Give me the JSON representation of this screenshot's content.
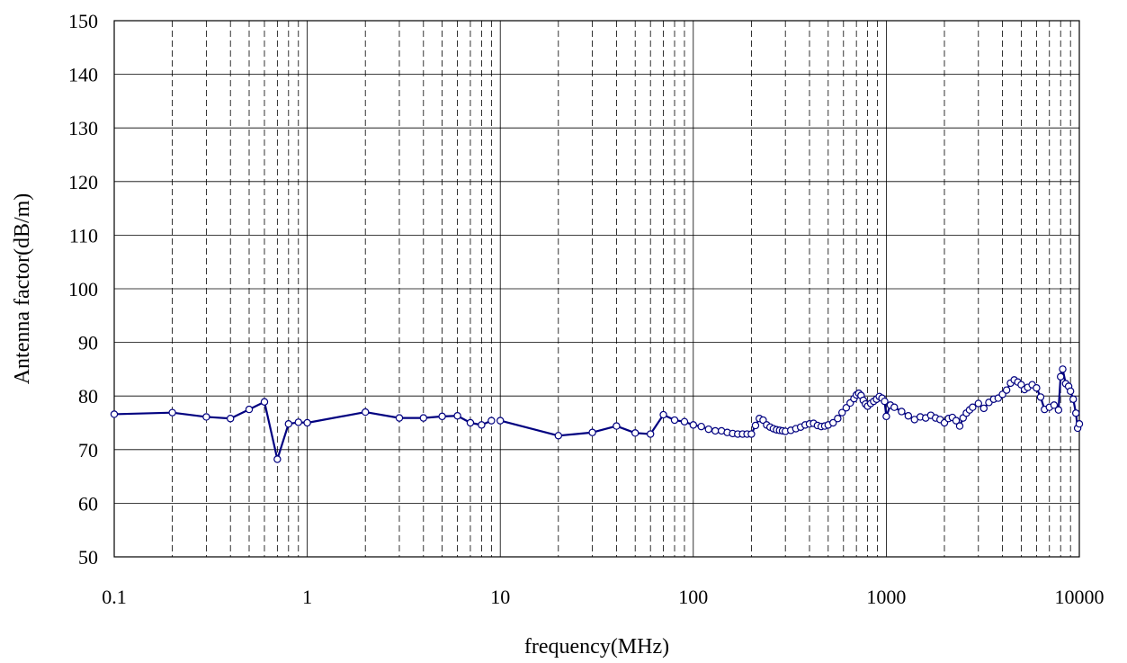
{
  "chart_data": {
    "type": "line",
    "title": "",
    "xlabel": "frequency(MHz)",
    "ylabel": "Antenna factor(dB/m)",
    "xscale": "log",
    "xlim": [
      0.1,
      10000
    ],
    "ylim": [
      50,
      150
    ],
    "grid": true,
    "legend": "none",
    "x_tick_labels": [
      "0.1",
      "1",
      "10",
      "100",
      "1000",
      "10000"
    ],
    "x_tick_values": [
      0.1,
      1,
      10,
      100,
      1000,
      10000
    ],
    "y_tick_labels": [
      "50",
      "60",
      "70",
      "80",
      "90",
      "100",
      "110",
      "120",
      "130",
      "140",
      "150"
    ],
    "y_tick_values": [
      50,
      60,
      70,
      80,
      90,
      100,
      110,
      120,
      130,
      140,
      150
    ],
    "series": [
      {
        "color": "#000080",
        "marker": "open-circle",
        "segments": [
          [
            [
              0.1,
              76.6
            ],
            [
              0.2,
              76.9
            ],
            [
              0.3,
              76.1
            ],
            [
              0.4,
              75.8
            ],
            [
              0.5,
              77.5
            ],
            [
              0.6,
              78.9
            ],
            [
              0.7,
              68.2
            ],
            [
              0.8,
              74.8
            ],
            [
              0.9,
              75.1
            ],
            [
              1.0,
              75.0
            ],
            [
              2.0,
              77.0
            ],
            [
              3.0,
              75.9
            ],
            [
              4.0,
              75.9
            ],
            [
              5.0,
              76.2
            ],
            [
              6.0,
              76.3
            ],
            [
              7.0,
              75.0
            ],
            [
              8.0,
              74.6
            ],
            [
              9.0,
              75.4
            ]
          ],
          [
            [
              10,
              75.4
            ],
            [
              20,
              72.6
            ],
            [
              30,
              73.2
            ],
            [
              40,
              74.4
            ],
            [
              50,
              73.1
            ],
            [
              60,
              72.9
            ],
            [
              70,
              76.5
            ],
            [
              80,
              75.5
            ],
            [
              90,
              75.2
            ],
            [
              100,
              74.6
            ],
            [
              110,
              74.3
            ],
            [
              120,
              73.8
            ],
            [
              130,
              73.5
            ],
            [
              140,
              73.5
            ],
            [
              150,
              73.2
            ],
            [
              160,
              73.0
            ],
            [
              170,
              72.9
            ],
            [
              180,
              72.9
            ],
            [
              190,
              72.9
            ],
            [
              200,
              72.9
            ],
            [
              210,
              74.5
            ],
            [
              220,
              75.8
            ],
            [
              230,
              75.5
            ],
            [
              240,
              74.6
            ],
            [
              250,
              74.2
            ],
            [
              260,
              73.9
            ],
            [
              270,
              73.7
            ],
            [
              280,
              73.6
            ],
            [
              290,
              73.5
            ],
            [
              300,
              73.4
            ],
            [
              320,
              73.6
            ],
            [
              340,
              73.9
            ],
            [
              360,
              74.2
            ],
            [
              380,
              74.6
            ],
            [
              400,
              74.8
            ],
            [
              420,
              74.9
            ],
            [
              440,
              74.5
            ],
            [
              460,
              74.3
            ],
            [
              480,
              74.4
            ],
            [
              500,
              74.6
            ],
            [
              530,
              75.0
            ],
            [
              560,
              75.8
            ],
            [
              590,
              76.9
            ],
            [
              620,
              77.8
            ],
            [
              650,
              78.7
            ],
            [
              680,
              79.5
            ],
            [
              700,
              80.2
            ],
            [
              720,
              80.5
            ],
            [
              740,
              80.1
            ],
            [
              760,
              79.2
            ],
            [
              780,
              78.5
            ],
            [
              800,
              78.1
            ],
            [
              830,
              78.6
            ],
            [
              860,
              79.0
            ],
            [
              890,
              79.4
            ],
            [
              920,
              79.9
            ],
            [
              950,
              79.6
            ],
            [
              980,
              79.0
            ],
            [
              1000,
              76.2
            ],
            [
              1050,
              78.3
            ],
            [
              1100,
              77.9
            ],
            [
              1200,
              77.1
            ],
            [
              1300,
              76.3
            ],
            [
              1400,
              75.6
            ],
            [
              1500,
              76.1
            ],
            [
              1600,
              75.9
            ],
            [
              1700,
              76.4
            ],
            [
              1800,
              75.9
            ],
            [
              1900,
              75.6
            ],
            [
              2000,
              75.0
            ],
            [
              2100,
              75.8
            ],
            [
              2200,
              76.0
            ],
            [
              2300,
              75.4
            ],
            [
              2400,
              74.4
            ],
            [
              2500,
              75.9
            ],
            [
              2600,
              76.8
            ],
            [
              2700,
              77.4
            ],
            [
              2800,
              77.9
            ],
            [
              3000,
              78.6
            ],
            [
              3200,
              77.7
            ],
            [
              3400,
              78.8
            ],
            [
              3600,
              79.4
            ],
            [
              3800,
              79.6
            ],
            [
              4000,
              80.3
            ],
            [
              4200,
              81.1
            ],
            [
              4400,
              82.4
            ],
            [
              4600,
              83.0
            ],
            [
              4800,
              82.6
            ],
            [
              5000,
              82.1
            ],
            [
              5200,
              81.2
            ],
            [
              5400,
              81.6
            ],
            [
              5700,
              82.1
            ],
            [
              6000,
              81.5
            ],
            [
              6300,
              79.8
            ],
            [
              6600,
              77.5
            ],
            [
              7000,
              77.9
            ],
            [
              7400,
              78.3
            ],
            [
              7800,
              77.4
            ],
            [
              8000,
              83.6
            ],
            [
              8200,
              85.0
            ],
            [
              8500,
              82.3
            ],
            [
              8800,
              81.8
            ],
            [
              9000,
              80.9
            ],
            [
              9300,
              79.4
            ],
            [
              9600,
              76.8
            ],
            [
              9800,
              74.0
            ],
            [
              10000,
              74.8
            ]
          ]
        ]
      }
    ]
  }
}
